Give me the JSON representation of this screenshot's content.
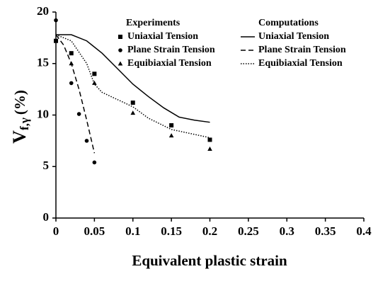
{
  "chart_data": {
    "type": "scatter",
    "x_label": "Equivalent plastic strain",
    "y_label": {
      "main": "V",
      "sub": "f,γ",
      "unit": "(%)"
    },
    "xlim": [
      0,
      0.4
    ],
    "xticks": [
      0,
      0.05,
      0.1,
      0.15,
      0.2,
      0.25,
      0.3,
      0.35,
      0.4
    ],
    "ylim": [
      0,
      20
    ],
    "yticks": [
      0,
      5,
      10,
      15,
      20
    ],
    "legend_groups": [
      "Experiments",
      "Computations"
    ],
    "series": [
      {
        "name": "Uniaxial Tension",
        "group": 0,
        "kind": "points",
        "marker": "square",
        "color": "#000",
        "x": [
          0,
          0.02,
          0.05,
          0.1,
          0.15,
          0.2
        ],
        "values": [
          17.2,
          16,
          14,
          11.2,
          9,
          7.6
        ]
      },
      {
        "name": "Plane Strain Tension",
        "group": 0,
        "kind": "points",
        "marker": "circle",
        "color": "#000",
        "x": [
          0,
          0.02,
          0.03,
          0.04,
          0.05
        ],
        "values": [
          19.2,
          13.1,
          10.1,
          7.5,
          5.4
        ]
      },
      {
        "name": "Equibiaxial Tension",
        "group": 0,
        "kind": "points",
        "marker": "triangle",
        "color": "#000",
        "x": [
          0.02,
          0.05,
          0.1,
          0.15,
          0.2
        ],
        "values": [
          15,
          13.1,
          10.2,
          8,
          6.7
        ]
      },
      {
        "name": "Uniaxial Tension",
        "group": 1,
        "kind": "line",
        "dash": "solid",
        "color": "#000",
        "x": [
          0,
          0.02,
          0.04,
          0.06,
          0.08,
          0.1,
          0.12,
          0.14,
          0.16,
          0.18,
          0.2
        ],
        "values": [
          17.8,
          17.8,
          17.2,
          16,
          14.5,
          13,
          11.8,
          10.7,
          9.8,
          9.5,
          9.3
        ]
      },
      {
        "name": "Plane Strain Tension",
        "group": 1,
        "kind": "line",
        "dash": "dashed",
        "color": "#000",
        "x": [
          0,
          0.01,
          0.02,
          0.03,
          0.04,
          0.05
        ],
        "values": [
          17.8,
          16.8,
          15,
          12.5,
          9.5,
          6.3
        ]
      },
      {
        "name": "Equibiaxial Tension",
        "group": 1,
        "kind": "line",
        "dash": "dotted",
        "color": "#000",
        "x": [
          0,
          0.02,
          0.04,
          0.05,
          0.06,
          0.08,
          0.1,
          0.12,
          0.15,
          0.2
        ],
        "values": [
          17.8,
          17.2,
          15,
          13,
          12.2,
          11.5,
          10.8,
          9.7,
          8.6,
          7.8
        ]
      }
    ]
  }
}
